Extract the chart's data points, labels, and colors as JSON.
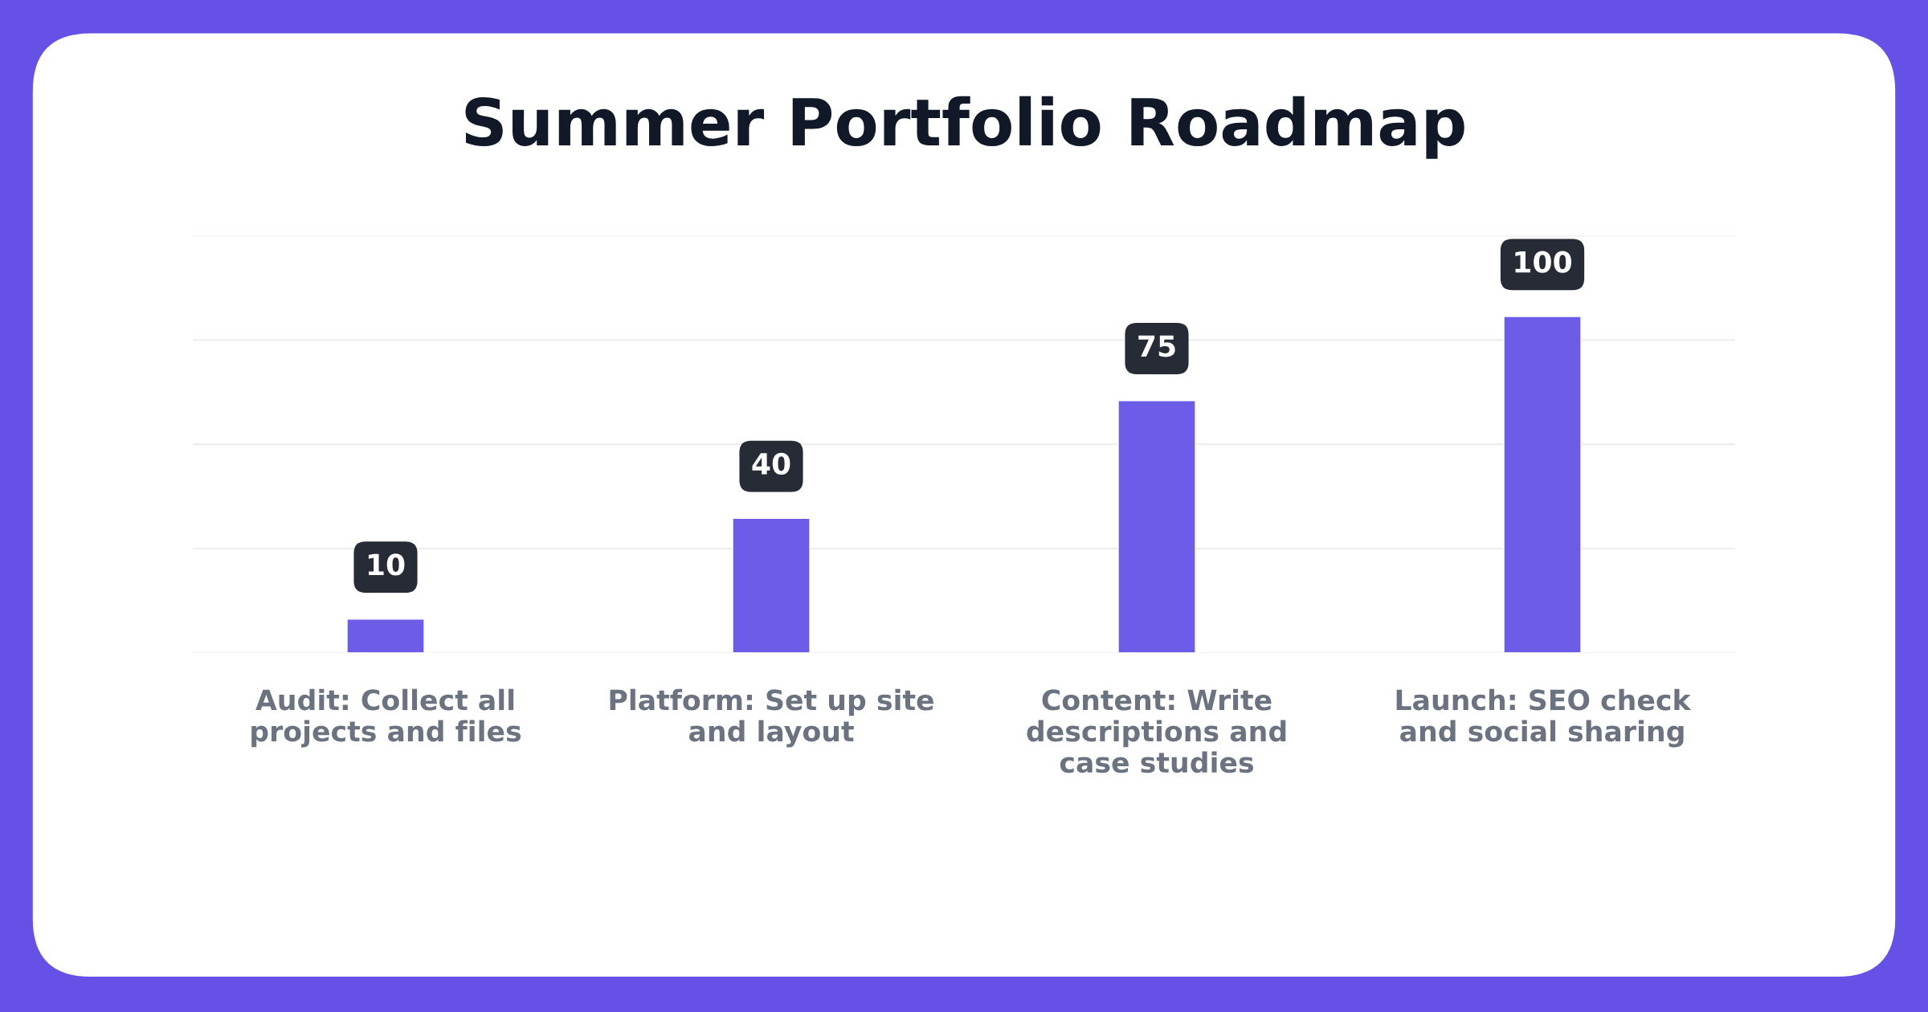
{
  "chart_data": {
    "type": "bar",
    "title": "Summer Portfolio Roadmap",
    "categories": [
      "Audit: Collect all projects and files",
      "Platform: Set up site and layout",
      "Content: Write descriptions and case studies",
      "Launch: SEO check and social sharing"
    ],
    "values": [
      10,
      40,
      75,
      100
    ],
    "color": "#6c5ce7",
    "ylim": [
      0,
      124
    ],
    "yticks": [
      {
        "value": 0,
        "label": null
      },
      {
        "value": 31,
        "label": null
      },
      {
        "value": 62,
        "label": null
      },
      {
        "value": 93,
        "label": null
      },
      {
        "value": 124,
        "label": null
      }
    ],
    "grid": "y",
    "data_labels": true,
    "tick_labels": "x"
  }
}
